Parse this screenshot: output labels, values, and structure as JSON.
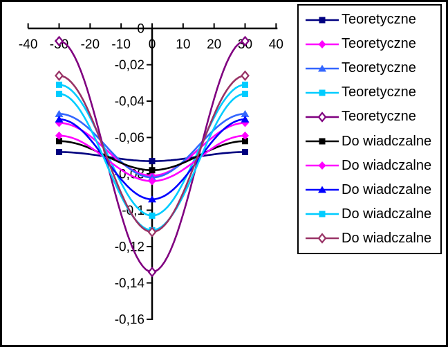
{
  "chart_data": {
    "type": "line",
    "title": "",
    "xlabel": "",
    "ylabel": "",
    "line_style": "smoothed",
    "grid": false,
    "background": "#ffffff",
    "axis_color": "#000000",
    "x_axis": {
      "range": [
        -40,
        40
      ],
      "ticks": [
        -40,
        -30,
        -20,
        -10,
        0,
        10,
        20,
        30,
        40
      ],
      "tick_labels": [
        "-40",
        "-30",
        "-20",
        "-10",
        "0",
        "10",
        "20",
        "30",
        "40"
      ]
    },
    "y_axis": {
      "range": [
        -0.16,
        0
      ],
      "ticks": [
        0,
        -0.02,
        -0.04,
        -0.06,
        -0.08,
        -0.1,
        -0.12,
        -0.14,
        -0.16
      ],
      "tick_labels": [
        "0",
        "-0,02",
        "-0,04",
        "-0,06",
        "-0,08",
        "-0,1",
        "-0,12",
        "-0,14",
        "-0,16"
      ],
      "decimal_separator": ","
    },
    "x": [
      -30,
      0,
      30
    ],
    "series": [
      {
        "name": "Teoretyczne",
        "color": "#000080",
        "marker": "square",
        "values": [
          -0.068,
          -0.073,
          -0.068
        ]
      },
      {
        "name": "Teoretyczne",
        "color": "#FF00FF",
        "marker": "diamond",
        "values": [
          -0.052,
          -0.081,
          -0.052
        ]
      },
      {
        "name": "Teoretyczne",
        "color": "#3366FF",
        "marker": "triangle",
        "values": [
          -0.047,
          -0.082,
          -0.047
        ]
      },
      {
        "name": "Teoretyczne",
        "color": "#00CCFF",
        "marker": "square",
        "values": [
          -0.031,
          -0.103,
          -0.031
        ]
      },
      {
        "name": "Teoretyczne",
        "color": "#800080",
        "marker": "open-diamond",
        "values": [
          -0.007,
          -0.134,
          -0.007
        ]
      },
      {
        "name": "Do wiadczalne",
        "color": "#000000",
        "marker": "square",
        "values": [
          -0.062,
          -0.078,
          -0.062
        ]
      },
      {
        "name": "Do wiadczalne",
        "color": "#FF00FF",
        "marker": "diamond",
        "values": [
          -0.059,
          -0.084,
          -0.059
        ]
      },
      {
        "name": "Do wiadczalne",
        "color": "#0000FF",
        "marker": "triangle",
        "values": [
          -0.05,
          -0.094,
          -0.05
        ]
      },
      {
        "name": "Do wiadczalne",
        "color": "#00CCFF",
        "marker": "square",
        "values": [
          -0.036,
          -0.111,
          -0.036
        ]
      },
      {
        "name": "Do wiadczalne",
        "color": "#993366",
        "marker": "open-diamond",
        "values": [
          -0.026,
          -0.112,
          -0.026
        ]
      }
    ],
    "legend": {
      "position": "right",
      "border": true
    }
  }
}
